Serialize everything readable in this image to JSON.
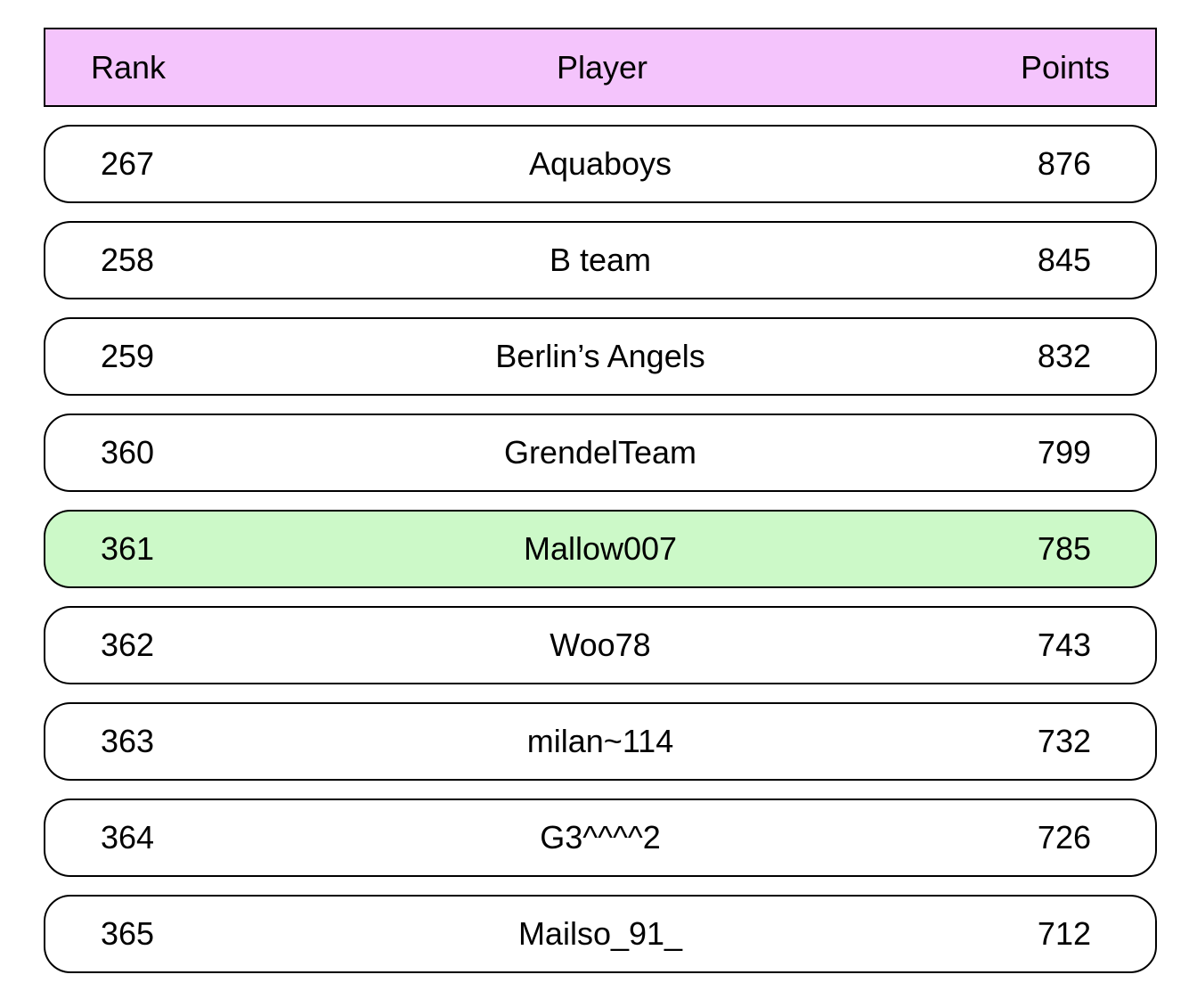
{
  "header": {
    "rank_label": "Rank",
    "player_label": "Player",
    "points_label": "Points"
  },
  "colors": {
    "header_bg": "#f4c4fc",
    "highlight_bg": "#ccf9c8",
    "border": "#000000"
  },
  "rows": [
    {
      "rank": "267",
      "player": "Aquaboys",
      "points": "876",
      "highlighted": false
    },
    {
      "rank": "258",
      "player": "B team",
      "points": "845",
      "highlighted": false
    },
    {
      "rank": "259",
      "player": "Berlin’s Angels",
      "points": "832",
      "highlighted": false
    },
    {
      "rank": "360",
      "player": "GrendelTeam",
      "points": "799",
      "highlighted": false
    },
    {
      "rank": "361",
      "player": "Mallow007",
      "points": "785",
      "highlighted": true
    },
    {
      "rank": "362",
      "player": "Woo78",
      "points": "743",
      "highlighted": false
    },
    {
      "rank": "363",
      "player": "milan~114",
      "points": "732",
      "highlighted": false
    },
    {
      "rank": "364",
      "player": "G3^^^^2",
      "points": "726",
      "highlighted": false
    },
    {
      "rank": "365",
      "player": "Mailso_91_",
      "points": "712",
      "highlighted": false
    }
  ]
}
